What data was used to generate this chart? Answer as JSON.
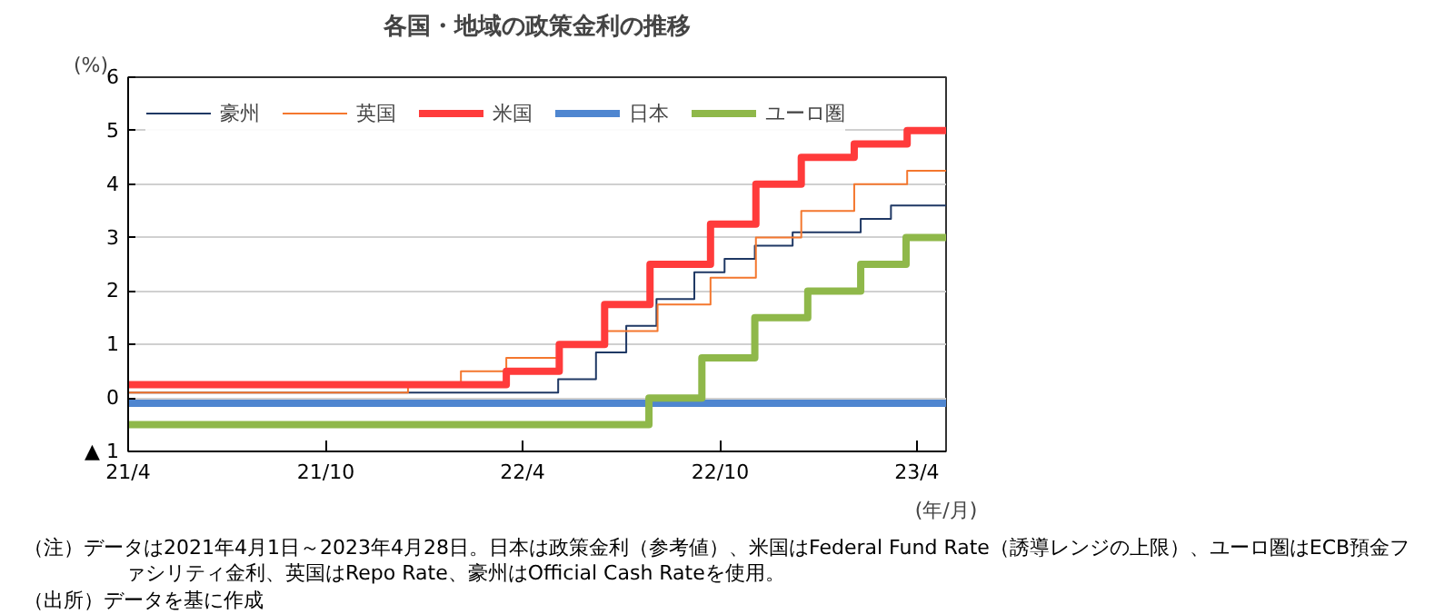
{
  "chart_data": {
    "type": "step",
    "title": "各国・地域の政策金利の推移",
    "ylabel": "(%)",
    "xlabel": "(年/月)",
    "xlim": [
      "2021-04-01",
      "2023-04-28"
    ],
    "xticks": [
      {
        "value": "2021-04-01",
        "label": "21/4"
      },
      {
        "value": "2021-10-01",
        "label": "21/10"
      },
      {
        "value": "2022-04-01",
        "label": "22/4"
      },
      {
        "value": "2022-10-01",
        "label": "22/10"
      },
      {
        "value": "2023-04-01",
        "label": "23/4"
      }
    ],
    "ylim": [
      -1,
      6
    ],
    "yticks": [
      {
        "value": -1,
        "label": "▲ 1"
      },
      0,
      1,
      2,
      3,
      4,
      5,
      6
    ],
    "grid": "y",
    "legend": "top left",
    "line_style": "solid",
    "series": [
      {
        "name": "豪州",
        "color": "#1f3864",
        "x": [
          "2021-04-01",
          "2022-05-04",
          "2022-06-08",
          "2022-07-06",
          "2022-08-03",
          "2022-09-07",
          "2022-10-05",
          "2022-11-02",
          "2022-12-07",
          "2023-02-08",
          "2023-03-08",
          "2023-04-28"
        ],
        "values": [
          0.1,
          0.35,
          0.85,
          1.35,
          1.85,
          2.35,
          2.6,
          2.85,
          3.1,
          3.35,
          3.6,
          3.6
        ]
      },
      {
        "name": "英国",
        "color": "#f4772e",
        "x": [
          "2021-04-01",
          "2021-12-16",
          "2022-02-03",
          "2022-03-17",
          "2022-05-05",
          "2022-06-16",
          "2022-08-04",
          "2022-09-22",
          "2022-11-03",
          "2022-12-15",
          "2023-02-02",
          "2023-03-23",
          "2023-04-28"
        ],
        "values": [
          0.1,
          0.25,
          0.5,
          0.75,
          1.0,
          1.25,
          1.75,
          2.25,
          3.0,
          3.5,
          4.0,
          4.25,
          4.25
        ]
      },
      {
        "name": "米国",
        "color": "#ff3b3b",
        "x": [
          "2021-04-01",
          "2022-03-17",
          "2022-05-05",
          "2022-06-16",
          "2022-07-28",
          "2022-09-22",
          "2022-11-03",
          "2022-12-15",
          "2023-02-02",
          "2023-03-23",
          "2023-04-28"
        ],
        "values": [
          0.25,
          0.5,
          1.0,
          1.75,
          2.5,
          3.25,
          4.0,
          4.5,
          4.75,
          5.0,
          5.0
        ]
      },
      {
        "name": "日本",
        "color": "#4f86d0",
        "x": [
          "2021-04-01",
          "2023-04-28"
        ],
        "values": [
          -0.1,
          -0.1
        ]
      },
      {
        "name": "ユーロ圏",
        "color": "#8fb84a",
        "x": [
          "2021-04-01",
          "2022-07-27",
          "2022-09-14",
          "2022-11-02",
          "2022-12-21",
          "2023-02-08",
          "2023-03-22",
          "2023-04-28"
        ],
        "values": [
          -0.5,
          0.0,
          0.75,
          1.5,
          2.0,
          2.5,
          3.0,
          3.0
        ]
      }
    ],
    "annotations": [
      "（注）データは2021年4月1日～2023年4月28日。日本は政策金利（参考値）、米国はFederal Fund Rate（誘導レンジの上限）、ユーロ圏はECB預金ファシリティ金利、英国はRepo Rate、豪州はOfficial Cash Rateを使用。",
      "（出所）データを基に作成"
    ]
  }
}
